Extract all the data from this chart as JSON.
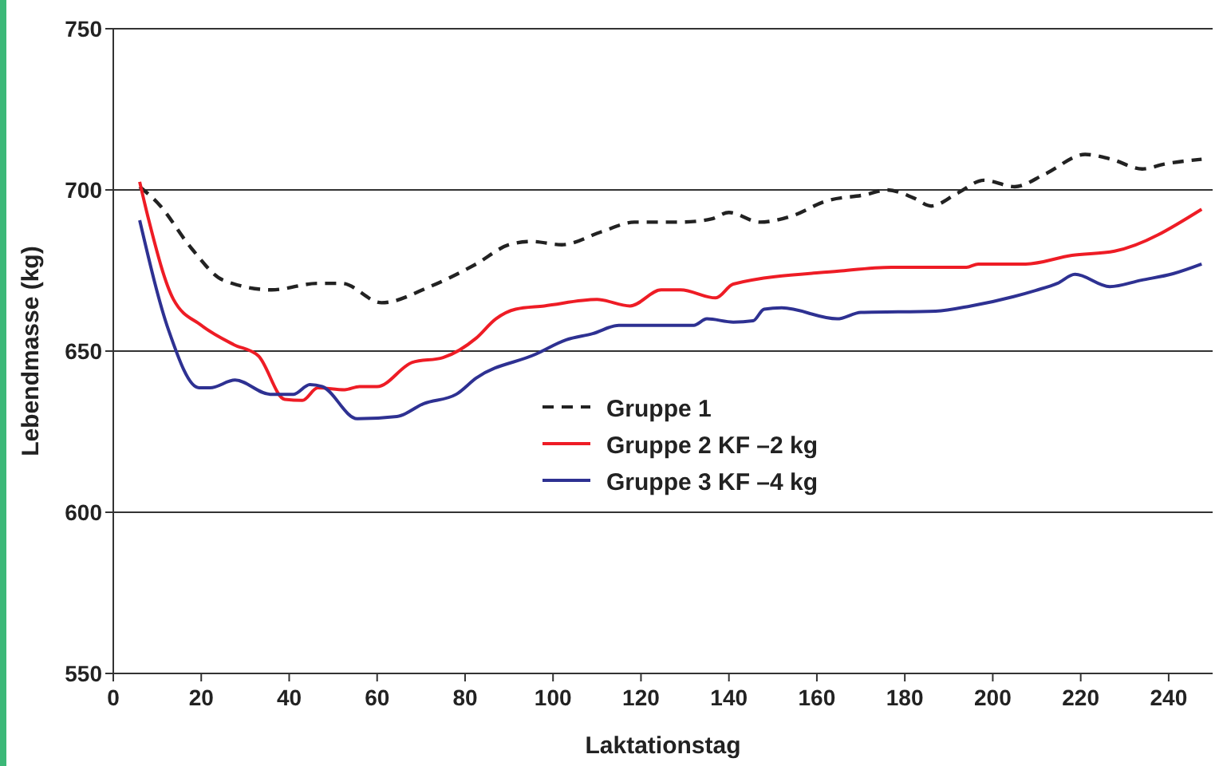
{
  "chart_data": {
    "type": "line",
    "xlabel": "Laktationstag",
    "ylabel": "Lebendmasse (kg)",
    "xlim": [
      0,
      250
    ],
    "ylim": [
      550,
      750
    ],
    "xticks": [
      0,
      20,
      40,
      60,
      80,
      100,
      120,
      140,
      160,
      180,
      200,
      220,
      240
    ],
    "yticks": [
      550,
      600,
      650,
      700,
      750
    ],
    "grid": "y",
    "legend": "center",
    "series": [
      {
        "name": "Gruppe 1",
        "color": "#222222",
        "line_style": "dashed",
        "x": [
          6,
          10.4,
          17.7,
          25,
          36,
          46.5,
          52,
          61,
          72,
          82.5,
          90,
          95,
          102,
          111,
          118.5,
          129,
          136,
          140,
          147,
          154.5,
          162,
          171,
          176,
          182,
          186,
          192,
          198,
          205,
          212,
          221,
          227,
          234,
          239,
          247.5
        ],
        "values": [
          701,
          695.5,
          682,
          672,
          669,
          671,
          671,
          665,
          670,
          677,
          683,
          684,
          683,
          687,
          690,
          690,
          691,
          693,
          690,
          692,
          696.5,
          698.5,
          700,
          697.5,
          695,
          699,
          703,
          701,
          705,
          711,
          709.5,
          706.5,
          708,
          709.5
        ]
      },
      {
        "name": "Gruppe 2 KF –2 kg",
        "color": "#ee1c25",
        "line_style": "solid",
        "x": [
          6,
          8,
          13.7,
          20,
          27.4,
          33,
          39,
          43,
          46.5,
          52.6,
          56,
          60,
          68,
          75,
          82.5,
          87,
          91.5,
          98,
          110,
          117.5,
          124.6,
          129,
          137,
          141,
          165,
          177,
          194,
          196.7,
          207.5,
          218,
          227.7,
          247.5
        ],
        "values": [
          702.5,
          691,
          666,
          658,
          652,
          648.5,
          635,
          634.7,
          638.6,
          638,
          639,
          639,
          646.5,
          648,
          654,
          660,
          663,
          664,
          666,
          664,
          669,
          669,
          666.5,
          670.8,
          674.8,
          676,
          676,
          677,
          677,
          679.7,
          681,
          694
        ]
      },
      {
        "name": "Gruppe 3 KF –4 kg",
        "color": "#2e3192",
        "line_style": "solid",
        "x": [
          6,
          12.6,
          19.5,
          22,
          27.7,
          35.7,
          41,
          44.7,
          47.5,
          55.5,
          64.5,
          70.6,
          78,
          82.5,
          96,
          103,
          109,
          115,
          132,
          135,
          141,
          145.5,
          148,
          152,
          164.6,
          170,
          187,
          195,
          209.7,
          214.7,
          218.7,
          226.6,
          233.8,
          241,
          247.5
        ],
        "values": [
          690.6,
          656.4,
          638.6,
          638.6,
          641,
          636.6,
          636.6,
          639.6,
          639,
          629,
          629.7,
          633.7,
          636.6,
          641.6,
          649,
          653.5,
          655.4,
          658,
          658,
          660,
          659,
          659.4,
          663,
          663.4,
          660,
          662,
          662.4,
          664,
          668.8,
          671,
          673.8,
          670,
          672,
          674,
          677
        ]
      }
    ]
  }
}
